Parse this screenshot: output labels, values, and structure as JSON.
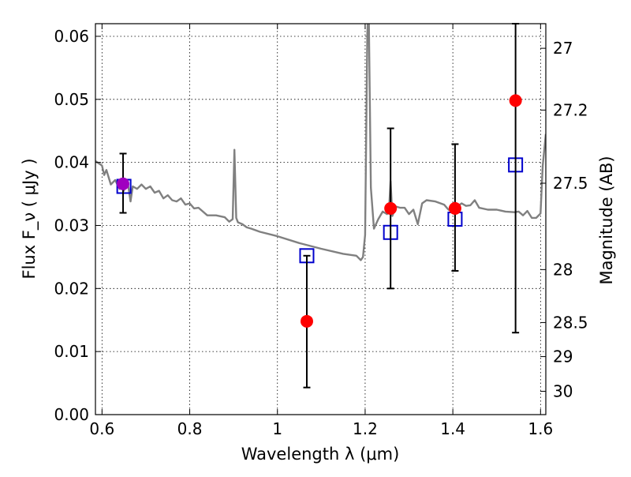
{
  "chart_data": {
    "type": "scatter",
    "xlabel": "Wavelength  λ (μm)",
    "ylabel": "Flux  F_ν  ( μJy )",
    "y2label": "Magnitude (AB)",
    "xlim": [
      0.585,
      1.612
    ],
    "ylim": [
      0.0,
      0.062
    ],
    "grid": true,
    "x_ticks": [
      0.6,
      0.8,
      1.0,
      1.2,
      1.4,
      1.6
    ],
    "x_tick_labels": [
      "0.6",
      "0.8",
      "1",
      "1.2",
      "1.4",
      "1.6"
    ],
    "y_ticks": [
      0.0,
      0.01,
      0.02,
      0.03,
      0.04,
      0.05,
      0.06
    ],
    "y_tick_labels": [
      "0.00",
      "0.01",
      "0.02",
      "0.03",
      "0.04",
      "0.05",
      "0.06"
    ],
    "y2_ticks": [
      {
        "label": "27",
        "flux": 0.0581
      },
      {
        "label": "27.2",
        "flux": 0.0483
      },
      {
        "label": "27.5",
        "flux": 0.0367
      },
      {
        "label": "28",
        "flux": 0.023
      },
      {
        "label": "28.5",
        "flux": 0.0146
      },
      {
        "label": "29",
        "flux": 0.0092
      },
      {
        "label": "30",
        "flux": 0.0037
      }
    ],
    "model_spectrum": {
      "color": "#808080",
      "x": [
        0.585,
        0.6,
        0.605,
        0.61,
        0.62,
        0.63,
        0.64,
        0.645,
        0.65,
        0.655,
        0.66,
        0.665,
        0.67,
        0.68,
        0.69,
        0.7,
        0.71,
        0.72,
        0.73,
        0.74,
        0.75,
        0.76,
        0.77,
        0.78,
        0.79,
        0.8,
        0.81,
        0.82,
        0.84,
        0.86,
        0.88,
        0.89,
        0.898,
        0.902,
        0.906,
        0.91,
        0.92,
        0.93,
        0.94,
        0.96,
        1.0,
        1.05,
        1.1,
        1.15,
        1.18,
        1.19,
        1.195,
        1.2,
        1.205,
        1.208,
        1.213,
        1.22,
        1.23,
        1.24,
        1.25,
        1.255,
        1.258,
        1.262,
        1.27,
        1.28,
        1.29,
        1.3,
        1.31,
        1.32,
        1.33,
        1.34,
        1.36,
        1.38,
        1.39,
        1.4,
        1.41,
        1.42,
        1.43,
        1.44,
        1.45,
        1.46,
        1.48,
        1.5,
        1.52,
        1.54,
        1.55,
        1.56,
        1.57,
        1.58,
        1.59,
        1.6,
        1.605,
        1.612
      ],
      "y": [
        0.0402,
        0.0395,
        0.038,
        0.0388,
        0.0365,
        0.0372,
        0.0358,
        0.0368,
        0.0355,
        0.0372,
        0.0362,
        0.0338,
        0.0362,
        0.0358,
        0.0365,
        0.0358,
        0.0362,
        0.0352,
        0.0355,
        0.0343,
        0.0348,
        0.034,
        0.0338,
        0.0343,
        0.0333,
        0.0335,
        0.0327,
        0.0328,
        0.0316,
        0.0316,
        0.0313,
        0.0306,
        0.031,
        0.042,
        0.0312,
        0.0305,
        0.0302,
        0.0297,
        0.0295,
        0.029,
        0.0283,
        0.0272,
        0.0263,
        0.0255,
        0.0252,
        0.0245,
        0.025,
        0.0285,
        0.0605,
        0.065,
        0.036,
        0.0295,
        0.031,
        0.0322,
        0.0318,
        0.0332,
        0.037,
        0.0315,
        0.033,
        0.0328,
        0.0328,
        0.0318,
        0.0325,
        0.0302,
        0.0335,
        0.034,
        0.0338,
        0.0333,
        0.0325,
        0.0322,
        0.033,
        0.0335,
        0.0331,
        0.0332,
        0.034,
        0.0328,
        0.0325,
        0.0325,
        0.0322,
        0.0321,
        0.0322,
        0.0316,
        0.0323,
        0.0312,
        0.0312,
        0.0319,
        0.0395,
        0.0445
      ]
    },
    "model_photometry": {
      "marker": "open-square",
      "color": "#0000cc",
      "x": [
        0.65,
        1.067,
        1.258,
        1.405,
        1.543
      ],
      "y": [
        0.0362,
        0.0252,
        0.0289,
        0.031,
        0.0396
      ]
    },
    "observed_photometry": {
      "marker": "filled-circle",
      "color": "#ff0000",
      "ecolor": "#000000",
      "x": [
        0.648,
        1.067,
        1.258,
        1.405,
        1.543
      ],
      "y": [
        0.0366,
        0.0148,
        0.0327,
        0.0327,
        0.0498
      ],
      "yerr_low": [
        0.0046,
        0.0105,
        0.0127,
        0.0099,
        0.0368
      ],
      "yerr_high": [
        0.0048,
        0.0104,
        0.0127,
        0.0102,
        0.0122
      ]
    }
  }
}
